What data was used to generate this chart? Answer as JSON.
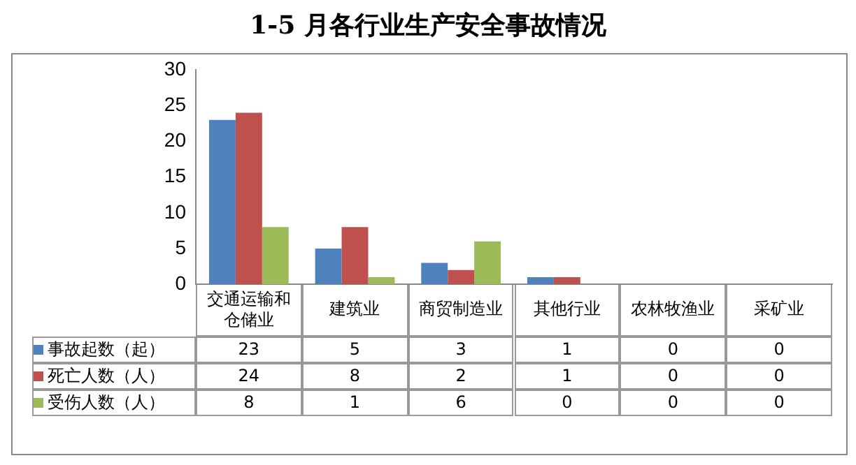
{
  "chart_data": {
    "type": "bar",
    "title": "1-5 月各行业生产安全事故情况",
    "categories": [
      "交通运输和仓储业",
      "建筑业",
      "商贸制造业",
      "其他行业",
      "农林牧渔业",
      "采矿业"
    ],
    "series": [
      {
        "name": "事故起数（起）",
        "color": "#4f81bd",
        "values": [
          23,
          5,
          3,
          1,
          0,
          0
        ]
      },
      {
        "name": "死亡人数（人）",
        "color": "#c0504d",
        "values": [
          24,
          8,
          2,
          1,
          0,
          0
        ]
      },
      {
        "name": "受伤人数（人）",
        "color": "#9bbb59",
        "values": [
          8,
          1,
          6,
          0,
          0,
          0
        ]
      }
    ],
    "ylim": [
      0,
      30
    ],
    "yticks": [
      0,
      5,
      10,
      15,
      20,
      25,
      30
    ],
    "grid": false,
    "legend": "bottom",
    "data_labels": true
  }
}
